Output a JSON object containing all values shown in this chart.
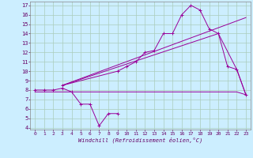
{
  "xlabel": "Windchill (Refroidissement éolien,°C)",
  "bg_color": "#cceeff",
  "grid_color": "#aaccbb",
  "line_color": "#990099",
  "xlim": [
    -0.5,
    23.5
  ],
  "ylim": [
    3.8,
    17.4
  ],
  "yticks": [
    4,
    5,
    6,
    7,
    8,
    9,
    10,
    11,
    12,
    13,
    14,
    15,
    16,
    17
  ],
  "xticks": [
    0,
    1,
    2,
    3,
    4,
    5,
    6,
    7,
    8,
    9,
    10,
    11,
    12,
    13,
    14,
    15,
    16,
    17,
    18,
    19,
    20,
    21,
    22,
    23
  ],
  "s1x": [
    0,
    1,
    2,
    3,
    4,
    5,
    6,
    7,
    8,
    9
  ],
  "s1y": [
    8.0,
    8.0,
    8.0,
    8.2,
    7.8,
    6.5,
    6.5,
    4.2,
    5.5,
    5.5
  ],
  "s2x": [
    0,
    1,
    2,
    3,
    4,
    5,
    6,
    7,
    8,
    9,
    10,
    11,
    12,
    13,
    14,
    15,
    16,
    17,
    18,
    19,
    20,
    21,
    22,
    23
  ],
  "s2y": [
    7.8,
    7.8,
    7.8,
    7.8,
    7.8,
    7.8,
    7.8,
    7.8,
    7.8,
    7.8,
    7.8,
    7.8,
    7.8,
    7.8,
    7.8,
    7.8,
    7.8,
    7.8,
    7.8,
    7.8,
    7.8,
    7.8,
    7.8,
    7.5
  ],
  "s3x": [
    3,
    9,
    10,
    11,
    12,
    13,
    14,
    15,
    16,
    17,
    18,
    19,
    20,
    21,
    22,
    23
  ],
  "s3y": [
    8.5,
    10.0,
    10.5,
    11.0,
    12.0,
    12.2,
    14.0,
    14.0,
    16.0,
    17.0,
    16.5,
    14.5,
    14.0,
    10.5,
    10.2,
    7.5
  ],
  "s4x": [
    3,
    23
  ],
  "s4y": [
    8.5,
    15.7
  ],
  "s5x": [
    3,
    20,
    22,
    23
  ],
  "s5y": [
    8.5,
    14.0,
    10.2,
    7.5
  ]
}
